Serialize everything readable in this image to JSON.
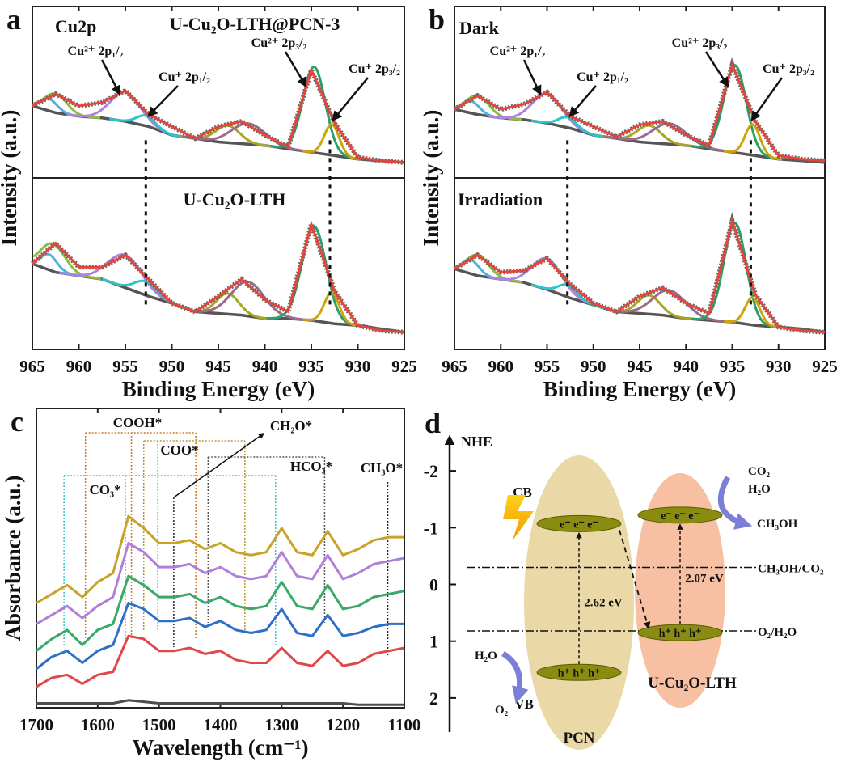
{
  "chart_data": [
    {
      "type": "xps",
      "panel": "a",
      "xlabel": "Binding Energy (eV)",
      "ylabel": "Intensity (a.u.)",
      "xlim": [
        965,
        925
      ],
      "xticks": [
        965,
        960,
        955,
        950,
        945,
        940,
        935,
        930,
        925
      ],
      "x": [
        965,
        962.5,
        960,
        957.5,
        955,
        952.5,
        950,
        947.5,
        945,
        942.5,
        940,
        937.5,
        935,
        932.5,
        930,
        927.5,
        925
      ],
      "ref_lines": [
        952.8,
        933
      ],
      "annotations": [
        "Cu²⁺ 2p₁/₂",
        "Cu⁺ 2p₁/₂",
        "Cu²⁺ 2p₃/₂",
        "Cu⁺ 2p₃/₂"
      ],
      "subplots": [
        {
          "labels": [
            "Cu2p",
            "U-Cu₂O-LTH@PCN-3"
          ],
          "ylim": [
            0,
            100
          ],
          "envelope": {
            "color": "#e4453c",
            "values": [
              42,
              49,
              42,
              44,
              51,
              37,
              30,
              23,
              30,
              33,
              25,
              18,
              63,
              32,
              12,
              10,
              9
            ]
          },
          "background": {
            "color": "#555555",
            "values": [
              42,
              38,
              36,
              35,
              33,
              30,
              25,
              23,
              21,
              20,
              19,
              17,
              15,
              13,
              11,
              10,
              9
            ]
          },
          "peaks": [
            {
              "color": "#8cbf3f",
              "center": 962.5,
              "height": 11,
              "width": 1.2
            },
            {
              "color": "#4fb3e0",
              "center": 963.2,
              "height": 7,
              "width": 0.9
            },
            {
              "color": "#b47fe0",
              "center": 955,
              "height": 17,
              "width": 1.6
            },
            {
              "color": "#2bc4cc",
              "center": 952.8,
              "height": 6,
              "width": 1.0
            },
            {
              "color": "#a8a620",
              "center": 944,
              "height": 10,
              "width": 1.3
            },
            {
              "color": "#9a6b8f",
              "center": 941.8,
              "height": 12,
              "width": 1.8
            },
            {
              "color": "#2e9e6a",
              "center": 934.7,
              "height": 50,
              "width": 1.2
            },
            {
              "color": "#cda40a",
              "center": 932.8,
              "height": 18,
              "width": 0.8
            }
          ]
        },
        {
          "labels": [
            "U-Cu₂O-LTH"
          ],
          "ylim": [
            0,
            100
          ],
          "envelope": {
            "color": "#e4453c",
            "values": [
              50,
              62,
              48,
              48,
              55,
              41,
              27,
              22,
              31,
              41,
              29,
              22,
              73,
              34,
              14,
              11,
              10
            ]
          },
          "background": {
            "color": "#555555",
            "values": [
              50,
              45,
              43,
              41,
              36,
              31,
              27,
              22,
              21,
              20,
              18,
              18,
              17,
              15,
              14,
              12,
              10
            ]
          },
          "peaks": [
            {
              "color": "#8cbf3f",
              "center": 962.8,
              "height": 16,
              "width": 1.3
            },
            {
              "color": "#4fb3e0",
              "center": 963.2,
              "height": 9,
              "width": 0.9
            },
            {
              "color": "#b47fe0",
              "center": 955,
              "height": 19,
              "width": 1.8
            },
            {
              "color": "#2bc4cc",
              "center": 952.8,
              "height": 8,
              "width": 1.2
            },
            {
              "color": "#a8a620",
              "center": 944,
              "height": 12,
              "width": 1.2
            },
            {
              "color": "#9a6b8f",
              "center": 941.8,
              "height": 20,
              "width": 1.8
            },
            {
              "color": "#2e9e6a",
              "center": 934.7,
              "height": 55,
              "width": 1.3
            },
            {
              "color": "#cda40a",
              "center": 932.8,
              "height": 18,
              "width": 0.8
            }
          ]
        }
      ]
    },
    {
      "type": "xps",
      "panel": "b",
      "xlabel": "Binding Energy (eV)",
      "ylabel": "Intensity (a.u.)",
      "xlim": [
        965,
        925
      ],
      "xticks": [
        965,
        960,
        955,
        950,
        945,
        940,
        935,
        930,
        925
      ],
      "x": [
        965,
        962.5,
        960,
        957.5,
        955,
        952.5,
        950,
        947.5,
        945,
        942.5,
        940,
        937.5,
        935,
        932.5,
        930,
        927.5,
        925
      ],
      "ref_lines": [
        952.8,
        933
      ],
      "annotations": [
        "Cu²⁺ 2p₁/₂",
        "Cu⁺ 2p₁/₂",
        "Cu²⁺ 2p₃/₂",
        "Cu⁺ 2p₃/₂"
      ],
      "subplots": [
        {
          "labels": [
            "Dark"
          ],
          "ylim": [
            0,
            100
          ],
          "envelope": {
            "color": "#e4453c",
            "values": [
              40,
              48,
              40,
              43,
              50,
              36,
              30,
              24,
              31,
              33,
              25,
              19,
              66,
              33,
              13,
              11,
              10
            ]
          },
          "background": {
            "color": "#555555",
            "values": [
              40,
              37,
              35,
              34,
              32,
              29,
              25,
              23,
              21,
              20,
              19,
              17,
              15,
              13,
              11,
              10,
              9
            ]
          },
          "peaks": [
            {
              "color": "#8cbf3f",
              "center": 962.5,
              "height": 11,
              "width": 1.2
            },
            {
              "color": "#4fb3e0",
              "center": 963.2,
              "height": 7,
              "width": 0.9
            },
            {
              "color": "#b47fe0",
              "center": 955,
              "height": 17,
              "width": 1.6
            },
            {
              "color": "#2bc4cc",
              "center": 952.8,
              "height": 6,
              "width": 1.0
            },
            {
              "color": "#a8a620",
              "center": 944,
              "height": 10,
              "width": 1.3
            },
            {
              "color": "#9a6b8f",
              "center": 941.8,
              "height": 12,
              "width": 1.8
            },
            {
              "color": "#2e9e6a",
              "center": 934.7,
              "height": 51,
              "width": 1.2
            },
            {
              "color": "#cda40a",
              "center": 932.8,
              "height": 18,
              "width": 0.8
            }
          ]
        },
        {
          "labels": [
            "Irradiation"
          ],
          "ylim": [
            0,
            100
          ],
          "envelope": {
            "color": "#e4453c",
            "values": [
              47,
              55,
              45,
              46,
              53,
              38,
              27,
              22,
              31,
              36,
              27,
              21,
              75,
              32,
              13,
              11,
              10
            ]
          },
          "background": {
            "color": "#555555",
            "values": [
              47,
              43,
              41,
              39,
              35,
              30,
              26,
              22,
              21,
              20,
              18,
              17,
              16,
              14,
              13,
              12,
              10
            ]
          },
          "peaks": [
            {
              "color": "#8cbf3f",
              "center": 962.5,
              "height": 12,
              "width": 1.2
            },
            {
              "color": "#4fb3e0",
              "center": 963.2,
              "height": 8,
              "width": 0.9
            },
            {
              "color": "#b47fe0",
              "center": 955,
              "height": 18,
              "width": 1.6
            },
            {
              "color": "#2bc4cc",
              "center": 952.8,
              "height": 7,
              "width": 1.0
            },
            {
              "color": "#a8a620",
              "center": 944,
              "height": 11,
              "width": 1.2
            },
            {
              "color": "#9a6b8f",
              "center": 941.8,
              "height": 15,
              "width": 1.8
            },
            {
              "color": "#2e9e6a",
              "center": 934.7,
              "height": 58,
              "width": 1.2
            },
            {
              "color": "#cda40a",
              "center": 932.8,
              "height": 16,
              "width": 0.8
            }
          ]
        }
      ]
    },
    {
      "type": "ftir",
      "panel": "c",
      "xlabel": "Wavelength (cm⁻¹)",
      "ylabel": "Absorbance (a.u.)",
      "xlim": [
        1700,
        1100
      ],
      "xticks": [
        1700,
        1600,
        1500,
        1400,
        1300,
        1200,
        1100
      ],
      "ylim": [
        0,
        100
      ],
      "x": [
        1700,
        1675,
        1650,
        1625,
        1600,
        1575,
        1550,
        1525,
        1500,
        1475,
        1450,
        1425,
        1400,
        1375,
        1350,
        1325,
        1300,
        1275,
        1250,
        1225,
        1200,
        1175,
        1150,
        1125,
        1100
      ],
      "series": [
        {
          "color": "#4d4d4d",
          "values": [
            1.5,
            1.5,
            1.5,
            1.5,
            1.5,
            1.5,
            2.5,
            2,
            1.5,
            1.5,
            1.5,
            1.5,
            1.5,
            1.5,
            1.5,
            1.5,
            1.5,
            1.5,
            1.5,
            1.5,
            1.5,
            1,
            1,
            1,
            1
          ]
        },
        {
          "color": "#e04848",
          "values": [
            7,
            10,
            11,
            8,
            11,
            12,
            24,
            23,
            19,
            19,
            20,
            18,
            19,
            16,
            15,
            15,
            20,
            15,
            14,
            19,
            14,
            15,
            18,
            19,
            20
          ]
        },
        {
          "color": "#2f6fc9",
          "values": [
            13,
            17,
            19,
            15,
            19,
            21,
            35,
            33,
            29,
            29,
            30,
            27,
            29,
            26,
            25,
            26,
            33,
            25,
            24,
            31,
            24,
            25,
            27,
            28,
            28
          ]
        },
        {
          "color": "#3aa869",
          "values": [
            19,
            23,
            26,
            21,
            26,
            28,
            44,
            41,
            37,
            37,
            38,
            35,
            37,
            34,
            33,
            34,
            42,
            34,
            33,
            41,
            33,
            34,
            37,
            38,
            39
          ]
        },
        {
          "color": "#b07fd9",
          "values": [
            28,
            31,
            34,
            30,
            34,
            37,
            55,
            52,
            47,
            47,
            48,
            45,
            47,
            44,
            43,
            44,
            52,
            44,
            43,
            51,
            43,
            45,
            48,
            49,
            50
          ]
        },
        {
          "color": "#c9a22a",
          "values": [
            35,
            38,
            41,
            37,
            42,
            45,
            64,
            60,
            55,
            55,
            56,
            53,
            55,
            52,
            51,
            52,
            60,
            52,
            51,
            59,
            51,
            53,
            56,
            57,
            57
          ]
        }
      ],
      "brackets": [
        {
          "label": "COOH*",
          "color": "#cc7a22",
          "x": [
            1620,
            1545,
            1440
          ]
        },
        {
          "label": "CO₃*",
          "color": "#33c6cc",
          "x": [
            1655,
            1555,
            1310
          ]
        },
        {
          "label": "COO*",
          "color": "#b8952a",
          "x": [
            1525,
            1502,
            1360
          ]
        },
        {
          "label": "HCO₃*",
          "color": "#555555",
          "x": [
            1420,
            1230
          ]
        },
        {
          "label": "CH₃O*",
          "color": "#222222",
          "x": [
            1127
          ]
        },
        {
          "label": "CH₂O*",
          "color": "#222222",
          "x": [
            1476
          ]
        }
      ]
    },
    {
      "type": "band",
      "panel": "d",
      "ylabel": "NHE",
      "ylim": [
        -2.6,
        2.6
      ],
      "yticks": [
        -2,
        -1,
        0,
        1,
        2
      ],
      "cb_label": "CB",
      "vb_label": "VB",
      "bands": [
        {
          "name": "PCN",
          "color": "#ead9a6",
          "cb": -1.07,
          "vb": 1.55,
          "gap_label": "2.62 eV",
          "electrons": "e⁻ e⁻ e⁻",
          "holes": "h⁺ h⁺ h⁺"
        },
        {
          "name": "U-Cu₂O-LTH",
          "color": "#f7c0a2",
          "cb": -1.22,
          "vb": 0.85,
          "gap_label": "2.07 eV",
          "electrons": "e⁻ e⁻ e⁻",
          "holes": "h⁺ h⁺ h⁺"
        }
      ],
      "levels": [
        {
          "label": "CH₃OH/CO₂",
          "value": -0.3
        },
        {
          "label": "O₂/H₂O",
          "value": 0.82
        }
      ],
      "reactions": [
        "CO₂",
        "H₂O",
        "CH₃OH",
        "H₂O",
        "O₂"
      ]
    }
  ]
}
